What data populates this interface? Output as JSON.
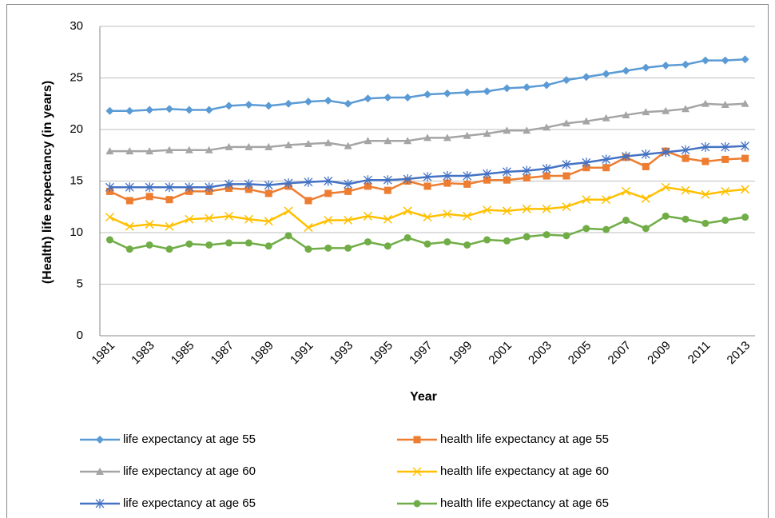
{
  "chart_data": {
    "type": "line",
    "x_label": "Year",
    "y_label": "(Health) life expectancy (in years)",
    "categories": [
      "1981",
      null,
      "1983",
      null,
      "1985",
      null,
      "1987",
      null,
      "1989",
      null,
      "1991",
      null,
      "1993",
      null,
      "1995",
      null,
      "1997",
      null,
      "1999",
      null,
      "2001",
      null,
      "2003",
      null,
      "2005",
      null,
      "2007",
      null,
      "2009",
      null,
      "2011",
      null,
      "2013"
    ],
    "ylim": [
      0,
      30
    ],
    "yticks": [
      0,
      5,
      10,
      15,
      20,
      25,
      30
    ],
    "grid": true,
    "legend": "bottom",
    "series": [
      {
        "name": "life expectancy at age 55",
        "color": "#5b9bd5",
        "marker": "diamond",
        "values": [
          21.8,
          21.8,
          21.9,
          22.0,
          21.9,
          21.9,
          22.3,
          22.4,
          22.3,
          22.5,
          22.7,
          22.8,
          22.5,
          23.0,
          23.1,
          23.1,
          23.4,
          23.5,
          23.6,
          23.7,
          24.0,
          24.1,
          24.3,
          24.8,
          25.1,
          25.4,
          25.7,
          26.0,
          26.2,
          26.3,
          26.7,
          26.7,
          26.8
        ]
      },
      {
        "name": "health life expectancy at age 55",
        "color": "#ed7d31",
        "marker": "square",
        "values": [
          14.0,
          13.1,
          13.5,
          13.2,
          14.0,
          14.0,
          14.3,
          14.2,
          13.8,
          14.5,
          13.1,
          13.8,
          14.0,
          14.5,
          14.1,
          15.0,
          14.5,
          14.8,
          14.7,
          15.1,
          15.1,
          15.3,
          15.5,
          15.5,
          16.3,
          16.3,
          17.3,
          16.4,
          17.9,
          17.2,
          16.9,
          17.1,
          17.2
        ]
      },
      {
        "name": "life expectancy at age 60",
        "color": "#a5a5a5",
        "marker": "triangle",
        "values": [
          17.9,
          17.9,
          17.9,
          18.0,
          18.0,
          18.0,
          18.3,
          18.3,
          18.3,
          18.5,
          18.6,
          18.7,
          18.4,
          18.9,
          18.9,
          18.9,
          19.2,
          19.2,
          19.4,
          19.6,
          19.9,
          19.9,
          20.2,
          20.6,
          20.8,
          21.1,
          21.4,
          21.7,
          21.8,
          22.0,
          22.5,
          22.4,
          22.5
        ]
      },
      {
        "name": "health life expectancy at age 60",
        "color": "#ffc000",
        "marker": "x",
        "values": [
          11.5,
          10.6,
          10.8,
          10.6,
          11.3,
          11.4,
          11.6,
          11.3,
          11.1,
          12.1,
          10.5,
          11.2,
          11.2,
          11.6,
          11.3,
          12.1,
          11.5,
          11.8,
          11.6,
          12.2,
          12.1,
          12.3,
          12.3,
          12.5,
          13.2,
          13.2,
          14.0,
          13.3,
          14.4,
          14.1,
          13.7,
          14.0,
          14.2
        ]
      },
      {
        "name": "life expectancy at age 65",
        "color": "#4472c4",
        "marker": "star",
        "values": [
          14.4,
          14.4,
          14.4,
          14.4,
          14.4,
          14.4,
          14.7,
          14.7,
          14.6,
          14.8,
          14.9,
          15.0,
          14.7,
          15.1,
          15.1,
          15.2,
          15.4,
          15.5,
          15.5,
          15.7,
          15.9,
          16.0,
          16.2,
          16.6,
          16.8,
          17.1,
          17.4,
          17.6,
          17.8,
          18.0,
          18.3,
          18.3,
          18.4
        ]
      },
      {
        "name": "health life expectancy at age 65",
        "color": "#70ad47",
        "marker": "circle",
        "values": [
          9.3,
          8.4,
          8.8,
          8.4,
          8.9,
          8.8,
          9.0,
          9.0,
          8.7,
          9.7,
          8.4,
          8.5,
          8.5,
          9.1,
          8.7,
          9.5,
          8.9,
          9.1,
          8.8,
          9.3,
          9.2,
          9.6,
          9.8,
          9.7,
          10.4,
          10.3,
          11.2,
          10.4,
          11.6,
          11.3,
          10.9,
          11.2,
          11.5
        ]
      }
    ]
  }
}
